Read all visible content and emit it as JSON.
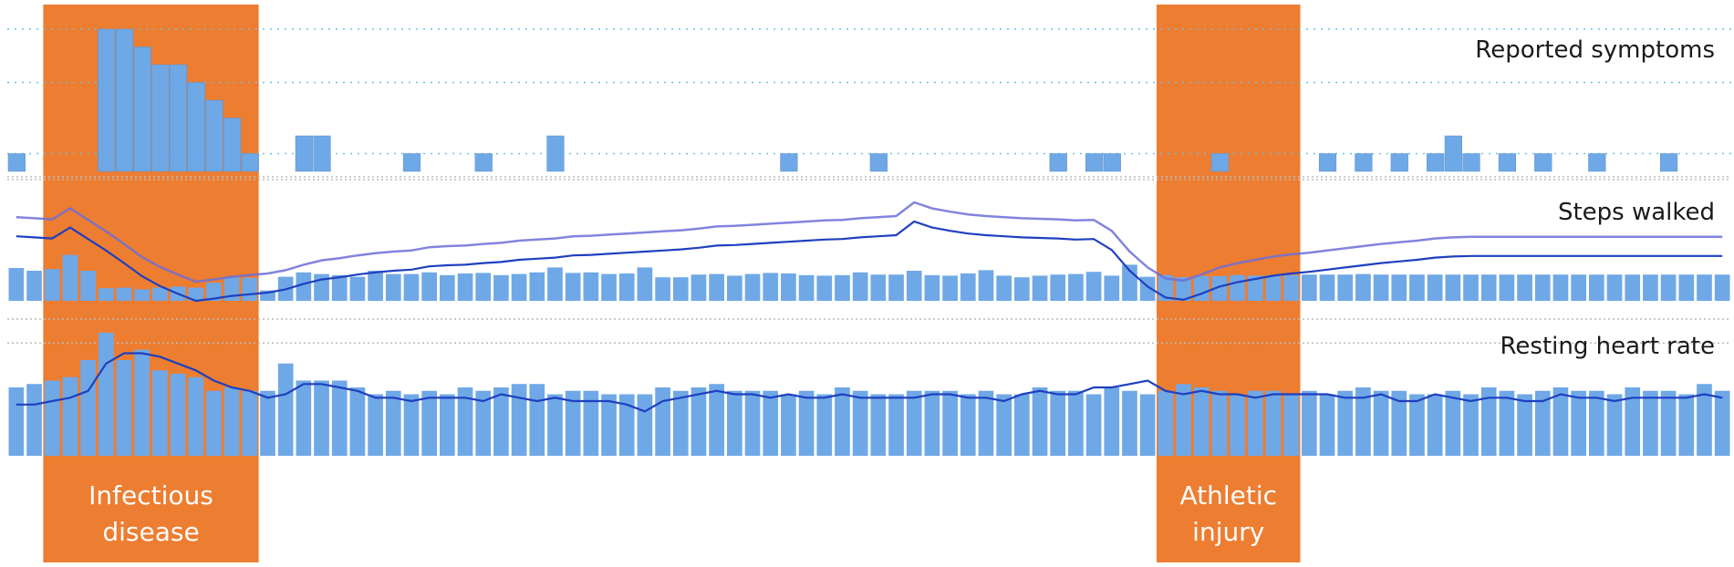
{
  "chart_data": [
    {
      "type": "bar",
      "title": "Reported symptoms",
      "days": 96,
      "ylim": [
        0,
        8
      ],
      "gridlines": [
        1,
        5,
        8
      ],
      "values": [
        1,
        0,
        0,
        0,
        0,
        8,
        8,
        7,
        6,
        6,
        5,
        4,
        3,
        1,
        0,
        0,
        2,
        2,
        0,
        0,
        0,
        0,
        1,
        0,
        0,
        0,
        1,
        0,
        0,
        0,
        2,
        0,
        0,
        0,
        0,
        0,
        0,
        0,
        0,
        0,
        0,
        0,
        0,
        1,
        0,
        0,
        0,
        0,
        1,
        0,
        0,
        0,
        0,
        0,
        0,
        0,
        0,
        0,
        1,
        0,
        1,
        1,
        0,
        0,
        0,
        0,
        0,
        1,
        0,
        0,
        0,
        0,
        0,
        1,
        0,
        1,
        0,
        1,
        0,
        1,
        2,
        1,
        0,
        1,
        0,
        1,
        0,
        0,
        1,
        0,
        0,
        0,
        1,
        0,
        0,
        0
      ]
    },
    {
      "type": "bar+line",
      "title": "Steps walked",
      "days": 96,
      "ylim": [
        0,
        20
      ],
      "bar_values": [
        6.0,
        5.5,
        5.8,
        8.4,
        5.5,
        2.3,
        2.4,
        2.1,
        2.4,
        2.6,
        2.4,
        3.3,
        4.4,
        4.2,
        1.9,
        4.4,
        5.2,
        4.9,
        4.7,
        4.4,
        5.5,
        4.9,
        4.9,
        5.2,
        4.7,
        5.0,
        5.1,
        4.7,
        4.9,
        5.2,
        6.1,
        5.1,
        5.2,
        4.9,
        5.0,
        6.1,
        4.3,
        4.3,
        4.8,
        4.9,
        4.6,
        4.9,
        5.1,
        5.0,
        4.7,
        4.6,
        4.7,
        5.2,
        4.8,
        4.8,
        5.5,
        4.7,
        4.6,
        5.0,
        5.6,
        4.6,
        4.3,
        4.6,
        4.8,
        4.9,
        5.3,
        4.6,
        6.6,
        4.4,
        4.7,
        4.3,
        4.5,
        4.5,
        4.7,
        4.6,
        4.7,
        4.7,
        4.8,
        4.8,
        4.8,
        4.9,
        4.8,
        4.8,
        4.8,
        4.8,
        4.8,
        4.8,
        4.8,
        4.8,
        4.8,
        4.8,
        4.8,
        4.8,
        4.8,
        4.8,
        4.8,
        4.8,
        4.8,
        4.8,
        4.8,
        4.8
      ],
      "line_values": [
        11.8,
        11.6,
        11.4,
        13.4,
        11.3,
        9.2,
        6.9,
        4.5,
        2.7,
        1.3,
        0.0,
        0.4,
        0.9,
        1.2,
        1.5,
        2.1,
        3.1,
        3.9,
        4.3,
        4.8,
        5.2,
        5.5,
        5.7,
        6.3,
        6.5,
        6.6,
        6.9,
        7.1,
        7.5,
        7.7,
        7.9,
        8.3,
        8.4,
        8.6,
        8.8,
        9.0,
        9.2,
        9.4,
        9.7,
        10.1,
        10.2,
        10.4,
        10.6,
        10.8,
        11.0,
        11.2,
        11.3,
        11.6,
        11.8,
        12.0,
        14.5,
        13.4,
        12.8,
        12.3,
        12.0,
        11.8,
        11.6,
        11.5,
        11.4,
        11.2,
        11.3,
        9.3,
        5.5,
        2.6,
        0.6,
        0.2,
        1.3,
        2.6,
        3.4,
        4.0,
        4.6,
        5.0,
        5.3,
        5.7,
        6.1,
        6.5,
        6.9,
        7.2,
        7.5,
        7.9,
        8.1,
        8.2,
        8.2,
        8.2,
        8.2,
        8.2,
        8.2,
        8.2,
        8.2,
        8.2,
        8.2,
        8.2,
        8.2,
        8.2,
        8.2,
        8.2
      ],
      "fan_offset": 3.5,
      "gridline": 19.0
    },
    {
      "type": "bar+line",
      "title": "Resting heart rate",
      "days": 96,
      "ylim": [
        40,
        80
      ],
      "bar_values": [
        60,
        61,
        62,
        63,
        68,
        76,
        68,
        71,
        65,
        64,
        63,
        59,
        60,
        59,
        59,
        67,
        62,
        62,
        62,
        60,
        58,
        59,
        58,
        59,
        58,
        60,
        59,
        60,
        61,
        61,
        58,
        59,
        59,
        58,
        58,
        58,
        60,
        59,
        60,
        61,
        59,
        59,
        59,
        58,
        59,
        58,
        60,
        59,
        58,
        58,
        59,
        59,
        59,
        58,
        59,
        58,
        58,
        60,
        59,
        59,
        58,
        60,
        59,
        58,
        59,
        61,
        60,
        59,
        58,
        59,
        59,
        58,
        59,
        58,
        59,
        60,
        59,
        59,
        58,
        58,
        59,
        58,
        60,
        59,
        58,
        59,
        60,
        59,
        59,
        58,
        60,
        59,
        59,
        58,
        61,
        59
      ],
      "line_values": [
        55,
        55,
        56,
        57,
        59,
        67,
        70,
        70,
        69,
        67,
        65,
        62,
        60,
        59,
        57,
        58,
        61,
        61,
        60,
        59,
        57,
        57,
        56,
        57,
        57,
        57,
        56,
        58,
        57,
        56,
        57,
        56,
        56,
        56,
        55,
        53,
        56,
        57,
        58,
        59,
        58,
        58,
        57,
        58,
        57,
        57,
        58,
        57,
        57,
        57,
        57,
        58,
        58,
        57,
        57,
        56,
        58,
        59,
        58,
        58,
        60,
        60,
        61,
        62,
        59,
        58,
        59,
        58,
        58,
        57,
        58,
        58,
        58,
        58,
        57,
        57,
        58,
        56,
        56,
        58,
        57,
        56,
        57,
        57,
        56,
        56,
        58,
        57,
        57,
        56,
        57,
        57,
        57,
        57,
        58,
        57
      ],
      "gridlines": [
        73,
        80
      ]
    }
  ],
  "bands": [
    {
      "label": "Infectious\ndisease",
      "lines": [
        "Infectious",
        "disease"
      ],
      "start_day": 2,
      "end_day": 14,
      "color": "#ED7D31"
    },
    {
      "label": "Athletic\ninjury",
      "lines": [
        "Athletic",
        "injury"
      ],
      "start_day": 64,
      "end_day": 72,
      "color": "#ED7D31"
    }
  ],
  "colors": {
    "bar": "#6FA8E6",
    "line": "#1F3FBF",
    "fan": "#6B6FD8",
    "gridline": "#6CC0E8",
    "band": "#ED7D31"
  }
}
